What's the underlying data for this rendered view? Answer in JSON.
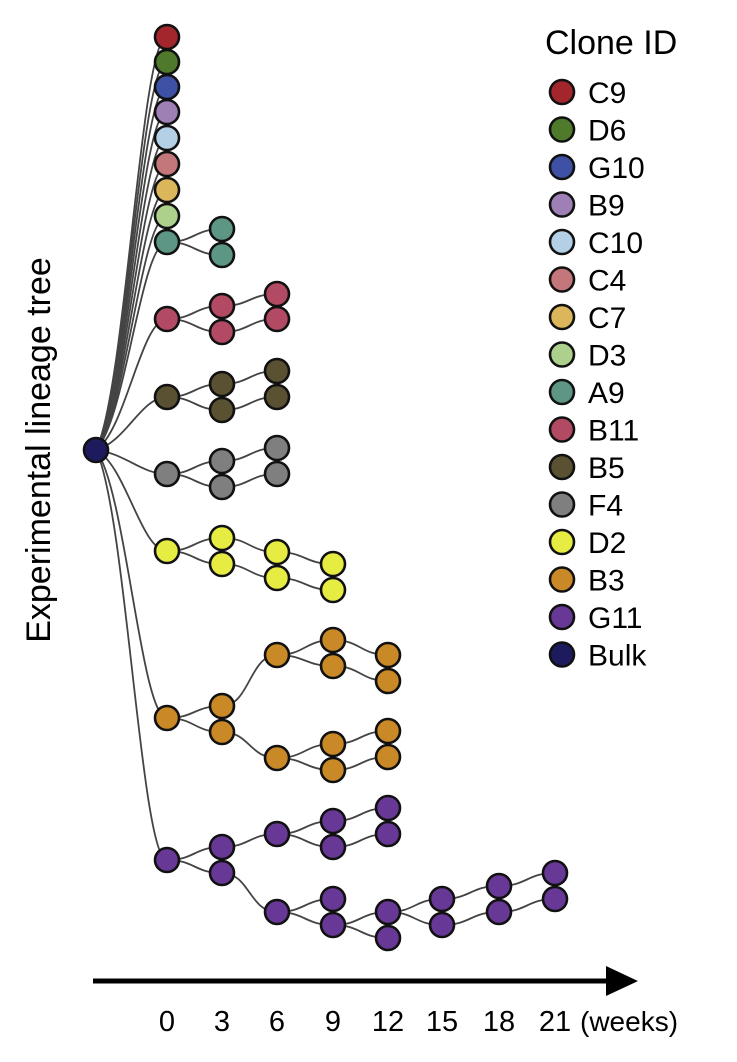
{
  "title": "Experimental lineage tree",
  "legend": {
    "title": "Clone ID",
    "entries": [
      {
        "id": "C9",
        "color": "#a2262b"
      },
      {
        "id": "D6",
        "color": "#4f7a2c"
      },
      {
        "id": "G10",
        "color": "#3f51a5"
      },
      {
        "id": "B9",
        "color": "#9e7fb6"
      },
      {
        "id": "C10",
        "color": "#b3d0e6"
      },
      {
        "id": "C4",
        "color": "#c4777a"
      },
      {
        "id": "C7",
        "color": "#dbb65a"
      },
      {
        "id": "D3",
        "color": "#add08d"
      },
      {
        "id": "A9",
        "color": "#5e9686"
      },
      {
        "id": "B11",
        "color": "#b24a64"
      },
      {
        "id": "B5",
        "color": "#595131"
      },
      {
        "id": "F4",
        "color": "#7f7f7f"
      },
      {
        "id": "D2",
        "color": "#e7ec43"
      },
      {
        "id": "B3",
        "color": "#c98926"
      },
      {
        "id": "G11",
        "color": "#683897"
      },
      {
        "id": "Bulk",
        "color": "#1d1b5e"
      }
    ]
  },
  "axis": {
    "ticks": [
      "0",
      "3",
      "6",
      "9",
      "12",
      "15",
      "18",
      "21"
    ],
    "unit": "(weeks)"
  },
  "tree": {
    "root": "Bulk",
    "clones": [
      {
        "id": "C9",
        "nodes": [
          {
            "t": 0,
            "n": 1
          }
        ]
      },
      {
        "id": "D6",
        "nodes": [
          {
            "t": 0,
            "n": 1
          }
        ]
      },
      {
        "id": "G10",
        "nodes": [
          {
            "t": 0,
            "n": 1
          }
        ]
      },
      {
        "id": "B9",
        "nodes": [
          {
            "t": 0,
            "n": 1
          }
        ]
      },
      {
        "id": "C10",
        "nodes": [
          {
            "t": 0,
            "n": 1
          }
        ]
      },
      {
        "id": "C4",
        "nodes": [
          {
            "t": 0,
            "n": 1
          }
        ]
      },
      {
        "id": "C7",
        "nodes": [
          {
            "t": 0,
            "n": 1
          }
        ]
      },
      {
        "id": "D3",
        "nodes": [
          {
            "t": 0,
            "n": 1
          }
        ]
      },
      {
        "id": "A9",
        "nodes": [
          {
            "t": 0,
            "n": 1
          },
          {
            "t": 3,
            "n": 2
          }
        ]
      },
      {
        "id": "B11",
        "nodes": [
          {
            "t": 0,
            "n": 1
          },
          {
            "t": 3,
            "n": 2
          },
          {
            "t": 6,
            "n": 2
          }
        ]
      },
      {
        "id": "B5",
        "nodes": [
          {
            "t": 0,
            "n": 1
          },
          {
            "t": 3,
            "n": 2
          },
          {
            "t": 6,
            "n": 2
          }
        ]
      },
      {
        "id": "F4",
        "nodes": [
          {
            "t": 0,
            "n": 1
          },
          {
            "t": 3,
            "n": 2
          },
          {
            "t": 6,
            "n": 2
          }
        ]
      },
      {
        "id": "D2",
        "nodes": [
          {
            "t": 0,
            "n": 1
          },
          {
            "t": 3,
            "n": 2
          },
          {
            "t": 6,
            "n": 2
          },
          {
            "t": 9,
            "n": 2
          }
        ]
      },
      {
        "id": "B3",
        "nodes": [
          {
            "t": 0,
            "n": 1
          },
          {
            "t": 3,
            "n": 2
          },
          {
            "t": 6,
            "n": 2
          },
          {
            "t": 9,
            "n": 4
          },
          {
            "t": 12,
            "n": 4
          }
        ]
      },
      {
        "id": "G11",
        "nodes": [
          {
            "t": 0,
            "n": 1
          },
          {
            "t": 3,
            "n": 2
          },
          {
            "t": 6,
            "n": 2
          },
          {
            "t": 9,
            "n": 4
          },
          {
            "t": 12,
            "n": 4
          },
          {
            "t": 15,
            "n": 2
          },
          {
            "t": 18,
            "n": 2
          },
          {
            "t": 21,
            "n": 2
          }
        ]
      }
    ]
  }
}
